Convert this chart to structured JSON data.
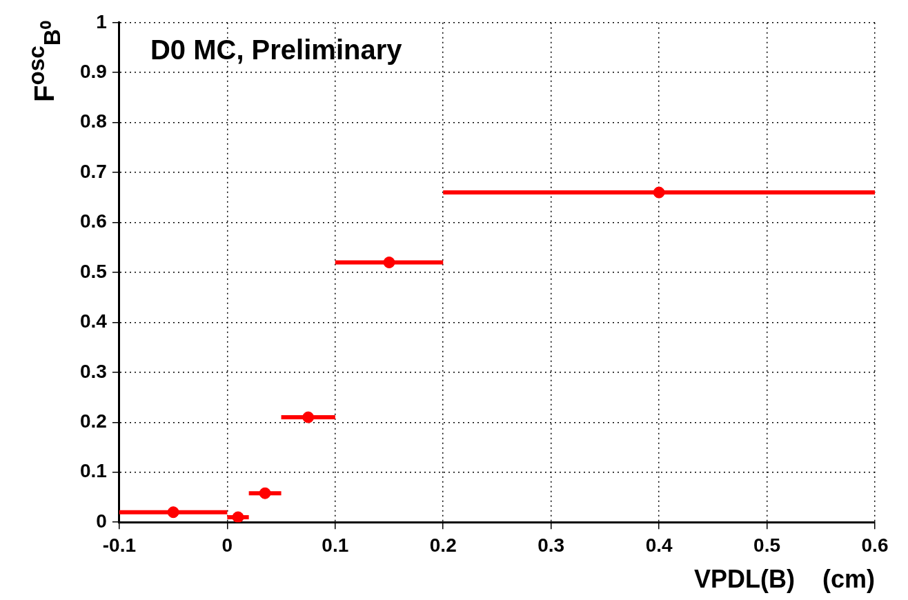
{
  "chart_data": {
    "type": "scatter",
    "xlabel": "VPDL(B)    (cm)",
    "ylabel": "F$^{osc}$$_{B⁰}$",
    "annotations": [
      "D0 MC, Preliminary"
    ],
    "x": [
      -0.05,
      0.01,
      0.035,
      0.075,
      0.15,
      0.4
    ],
    "series": [
      {
        "color": "#ff0000",
        "values": [
          0.02,
          0.01,
          0.058,
          0.21,
          0.52,
          0.66
        ],
        "xerrors": [
          0.05,
          0.01,
          0.015,
          0.025,
          0.05,
          0.2
        ]
      }
    ],
    "xlim": [
      -0.1,
      0.6
    ],
    "xticks": [
      -0.1,
      0,
      0.1,
      0.2,
      0.3,
      0.4,
      0.5,
      0.6
    ],
    "ylim": [
      0,
      1
    ],
    "yticks": [
      0,
      0.1,
      0.2,
      0.3,
      0.4,
      0.5,
      0.6,
      0.7,
      0.8,
      0.9,
      1
    ],
    "grid": true,
    "marker": "circle",
    "legend": false
  }
}
